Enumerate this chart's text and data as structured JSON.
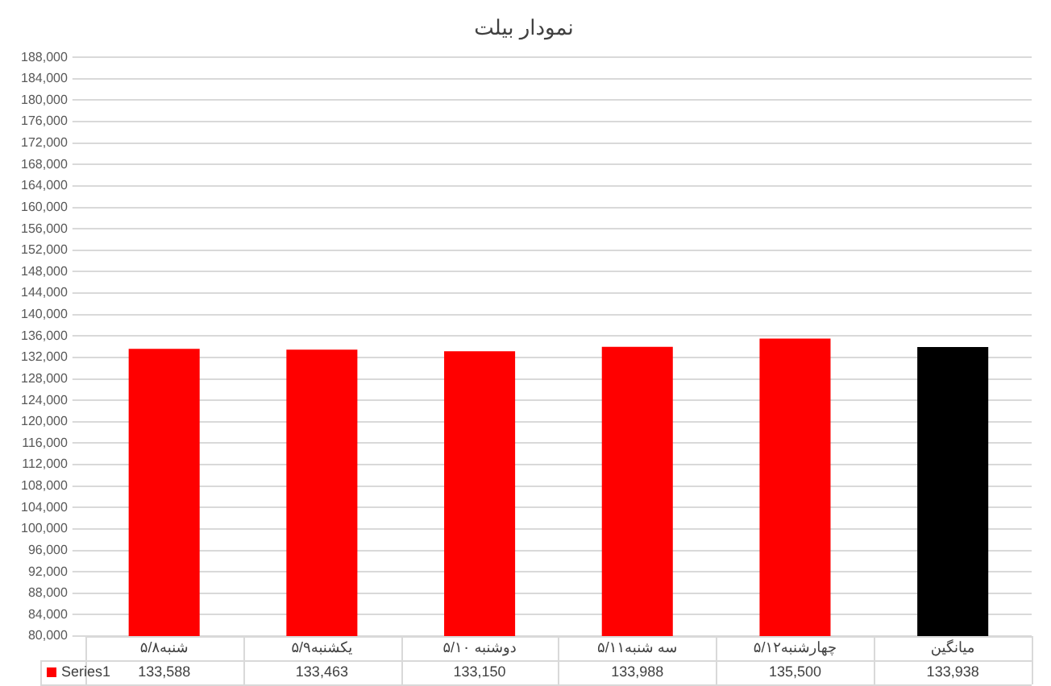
{
  "chart_data": {
    "type": "bar",
    "title": "نمودار بیلت",
    "categories": [
      "شنبه۵/۸",
      "یکشنبه۵/۹",
      "دوشنبه ۵/۱۰",
      "سه شنبه۵/۱۱",
      "چهارشنبه۵/۱۲",
      "میانگین"
    ],
    "series": [
      {
        "name": "Series1",
        "color": "#ff0000",
        "colors": [
          "#ff0000",
          "#ff0000",
          "#ff0000",
          "#ff0000",
          "#ff0000",
          "#000000"
        ],
        "values": [
          133588,
          133463,
          133150,
          133988,
          135500,
          133938
        ],
        "value_labels": [
          "133,588",
          "133,463",
          "133,150",
          "133,988",
          "135,500",
          "133,938"
        ]
      }
    ],
    "ylim": [
      80000,
      188000
    ],
    "yticks": [
      {
        "value": 80000,
        "label": "80,000"
      },
      {
        "value": 84000,
        "label": "84,000"
      },
      {
        "value": 88000,
        "label": "88,000"
      },
      {
        "value": 92000,
        "label": "92,000"
      },
      {
        "value": 96000,
        "label": "96,000"
      },
      {
        "value": 100000,
        "label": "100,000"
      },
      {
        "value": 104000,
        "label": "104,000"
      },
      {
        "value": 108000,
        "label": "108,000"
      },
      {
        "value": 112000,
        "label": "112,000"
      },
      {
        "value": 116000,
        "label": "116,000"
      },
      {
        "value": 120000,
        "label": "120,000"
      },
      {
        "value": 124000,
        "label": "124,000"
      },
      {
        "value": 128000,
        "label": "128,000"
      },
      {
        "value": 132000,
        "label": "132,000"
      },
      {
        "value": 136000,
        "label": "136,000"
      },
      {
        "value": 140000,
        "label": "140,000"
      },
      {
        "value": 144000,
        "label": "144,000"
      },
      {
        "value": 148000,
        "label": "148,000"
      },
      {
        "value": 152000,
        "label": "152,000"
      },
      {
        "value": 156000,
        "label": "156,000"
      },
      {
        "value": 160000,
        "label": "160,000"
      },
      {
        "value": 164000,
        "label": "164,000"
      },
      {
        "value": 168000,
        "label": "168,000"
      },
      {
        "value": 172000,
        "label": "172,000"
      },
      {
        "value": 176000,
        "label": "176,000"
      },
      {
        "value": 180000,
        "label": "180,000"
      },
      {
        "value": 184000,
        "label": "184,000"
      },
      {
        "value": 188000,
        "label": "188,000"
      }
    ],
    "grid": "y",
    "legend": "bottom"
  }
}
